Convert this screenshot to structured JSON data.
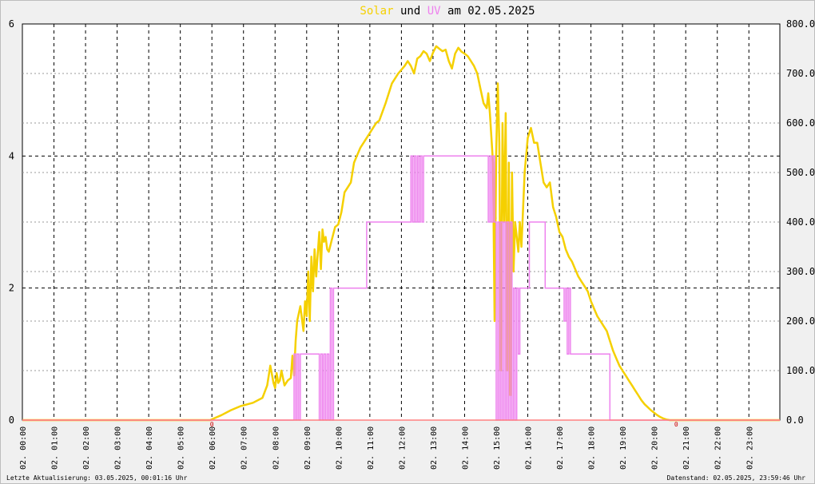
{
  "title": {
    "solar_word": "Solar",
    "und": "und",
    "uv_word": "UV",
    "am_date": "am 02.05.2025"
  },
  "footer": {
    "left": "Letzte Aktualisierung: 03.05.2025, 00:01:16 Uhr",
    "right": "Datenstand: 02.05.2025, 23:59:46 Uhr"
  },
  "colors": {
    "background": "#f0f0f0",
    "plot_background": "#ffffff",
    "solar": "#f5d000",
    "uv": "#ee82ee",
    "title_text": "#000000",
    "grid": "#000000"
  },
  "chart_data": {
    "type": "line",
    "grid": true,
    "x_tick_labels": [
      "02. 00:00",
      "02. 01:00",
      "02. 02:00",
      "02. 03:00",
      "02. 04:00",
      "02. 05:00",
      "02. 06:00",
      "02. 07:00",
      "02. 08:00",
      "02. 09:00",
      "02. 10:00",
      "02. 11:00",
      "02. 12:00",
      "02. 13:00",
      "02. 14:00",
      "02. 15:00",
      "02. 16:00",
      "02. 17:00",
      "02. 18:00",
      "02. 19:00",
      "02. 20:00",
      "02. 21:00",
      "02. 22:00",
      "02. 23:00"
    ],
    "x_range_hours": [
      0,
      23.98
    ],
    "left_axis": {
      "ylim": [
        0,
        6
      ],
      "ticks": [
        "0",
        "2",
        "4",
        "6"
      ]
    },
    "right_axis": {
      "ylim": [
        0,
        800
      ],
      "ticks": [
        "0.0",
        "100.0",
        "200.0",
        "300.0",
        "400.0",
        "500.0",
        "600.0",
        "700.0",
        "800.0"
      ]
    },
    "annotations": [
      "0",
      "0"
    ],
    "series": [
      {
        "name": "Solar",
        "axis": "right",
        "x_hours": [
          0,
          5.95,
          6.05,
          6.3,
          6.6,
          6.9,
          7.3,
          7.6,
          7.75,
          7.85,
          7.95,
          8.0,
          8.05,
          8.1,
          8.15,
          8.2,
          8.3,
          8.4,
          8.5,
          8.55,
          8.6,
          8.65,
          8.7,
          8.8,
          8.9,
          8.95,
          9.0,
          9.05,
          9.1,
          9.15,
          9.2,
          9.25,
          9.3,
          9.35,
          9.4,
          9.45,
          9.5,
          9.55,
          9.6,
          9.65,
          9.7,
          9.8,
          9.9,
          10.0,
          10.1,
          10.2,
          10.4,
          10.5,
          10.6,
          10.7,
          10.8,
          11.0,
          11.2,
          11.3,
          11.5,
          11.7,
          11.9,
          12.1,
          12.2,
          12.3,
          12.4,
          12.5,
          12.6,
          12.7,
          12.8,
          12.9,
          13.0,
          13.1,
          13.2,
          13.3,
          13.4,
          13.5,
          13.6,
          13.7,
          13.8,
          13.9,
          14.0,
          14.1,
          14.2,
          14.3,
          14.4,
          14.5,
          14.6,
          14.7,
          14.75,
          14.8,
          14.9,
          14.95,
          15.0,
          15.05,
          15.1,
          15.15,
          15.2,
          15.25,
          15.3,
          15.35,
          15.4,
          15.45,
          15.5,
          15.55,
          15.6,
          15.7,
          15.75,
          15.8,
          15.9,
          16.0,
          16.1,
          16.2,
          16.3,
          16.4,
          16.5,
          16.6,
          16.7,
          16.8,
          16.9,
          17.0,
          17.1,
          17.2,
          17.3,
          17.4,
          17.5,
          17.6,
          17.7,
          17.8,
          17.9,
          18.0,
          18.1,
          18.2,
          18.3,
          18.4,
          18.5,
          18.6,
          18.7,
          18.8,
          18.9,
          19.0,
          19.1,
          19.2,
          19.3,
          19.4,
          19.5,
          19.6,
          19.7,
          19.8,
          19.9,
          20.0,
          20.1,
          20.2,
          20.3,
          20.4,
          20.5,
          20.6,
          20.7,
          23.98
        ],
        "values": [
          0,
          0,
          3,
          10,
          20,
          28,
          35,
          45,
          70,
          110,
          75,
          65,
          95,
          75,
          80,
          100,
          70,
          80,
          85,
          130,
          90,
          160,
          200,
          230,
          180,
          240,
          210,
          300,
          200,
          330,
          260,
          345,
          290,
          335,
          380,
          305,
          385,
          360,
          370,
          345,
          340,
          365,
          390,
          395,
          420,
          460,
          480,
          520,
          535,
          550,
          560,
          580,
          600,
          605,
          640,
          680,
          700,
          715,
          725,
          715,
          700,
          730,
          735,
          745,
          740,
          725,
          742,
          755,
          750,
          745,
          748,
          725,
          710,
          740,
          752,
          744,
          740,
          735,
          725,
          715,
          700,
          670,
          640,
          630,
          660,
          620,
          520,
          200,
          540,
          680,
          560,
          100,
          600,
          400,
          620,
          100,
          520,
          50,
          500,
          300,
          400,
          340,
          400,
          350,
          500,
          570,
          590,
          560,
          560,
          520,
          480,
          470,
          480,
          430,
          410,
          380,
          370,
          345,
          330,
          320,
          305,
          290,
          280,
          270,
          260,
          240,
          225,
          210,
          200,
          190,
          180,
          160,
          140,
          125,
          110,
          100,
          90,
          80,
          70,
          60,
          50,
          40,
          32,
          26,
          20,
          15,
          10,
          6,
          3,
          1,
          0,
          0,
          0,
          0
        ]
      },
      {
        "name": "UV",
        "axis": "left",
        "x_hours": [
          0,
          8.55,
          8.6,
          8.65,
          8.7,
          8.75,
          8.8,
          9.35,
          9.4,
          9.45,
          9.5,
          9.55,
          9.6,
          9.65,
          9.7,
          9.75,
          9.8,
          9.85,
          9.9,
          10.85,
          10.9,
          12.25,
          12.3,
          12.35,
          12.4,
          12.45,
          12.5,
          12.55,
          12.6,
          12.65,
          12.7,
          12.75,
          14.7,
          14.75,
          14.8,
          14.85,
          14.9,
          14.95,
          15.0,
          15.05,
          15.1,
          15.15,
          15.2,
          15.25,
          15.3,
          15.35,
          15.4,
          15.45,
          15.5,
          15.55,
          15.6,
          15.65,
          15.7,
          15.75,
          15.8,
          16.0,
          16.05,
          16.5,
          16.55,
          17.1,
          17.15,
          17.2,
          17.25,
          17.3,
          17.35,
          18.55,
          18.6,
          23.98
        ],
        "values": [
          0,
          0,
          1,
          0,
          1,
          0,
          1,
          1,
          0,
          1,
          0,
          1,
          0,
          1,
          0,
          2,
          0,
          2,
          2,
          2,
          3,
          3,
          4,
          3,
          4,
          3,
          4,
          3,
          4,
          3,
          4,
          4,
          4,
          3,
          4,
          3,
          4,
          3,
          0,
          3,
          0,
          3,
          0,
          3,
          0,
          3,
          0,
          3,
          0,
          2,
          0,
          2,
          1,
          2,
          2,
          2,
          3,
          3,
          2,
          2,
          1.5,
          2,
          1,
          2,
          1,
          1,
          0,
          0
        ]
      }
    ]
  }
}
